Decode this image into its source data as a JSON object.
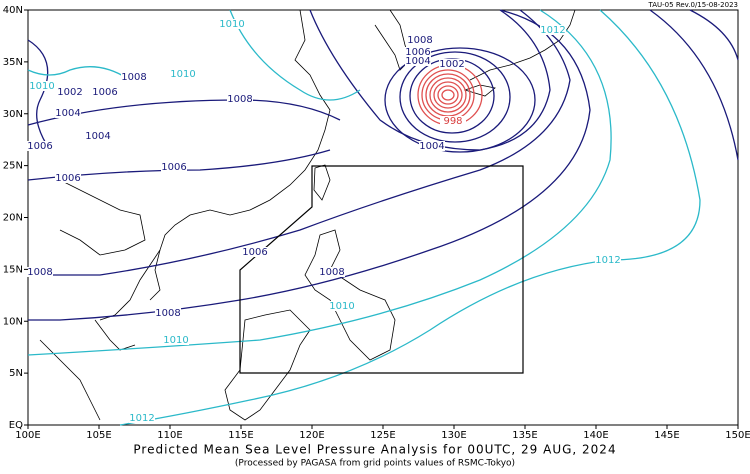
{
  "header": {
    "code": "TAU-05 Rev.0/15-08-2023"
  },
  "footer": {
    "title": "Predicted Mean Sea Level Pressure Analysis for 00UTC, 29 AUG, 2024",
    "subtitle": "(Processed by PAGASA from grid points values of RSMC-Tokyo)"
  },
  "map": {
    "longitude_labels": [
      "100E",
      "105E",
      "110E",
      "115E",
      "120E",
      "125E",
      "130E",
      "135E",
      "140E",
      "145E",
      "150E"
    ],
    "latitude_labels": [
      "EQ",
      "5N",
      "10N",
      "15N",
      "20N",
      "25N",
      "30N",
      "35N",
      "40N"
    ],
    "contour_labels": [
      "1010",
      "1008",
      "1006",
      "1004",
      "1002",
      "1012",
      "1010",
      "1008",
      "1002",
      "1006",
      "1004",
      "1004",
      "1006",
      "1006",
      "1008",
      "1006",
      "1004",
      "998",
      "1006",
      "1008",
      "1008",
      "1008",
      "1010",
      "1010",
      "1012",
      "1012",
      "1010"
    ]
  }
}
